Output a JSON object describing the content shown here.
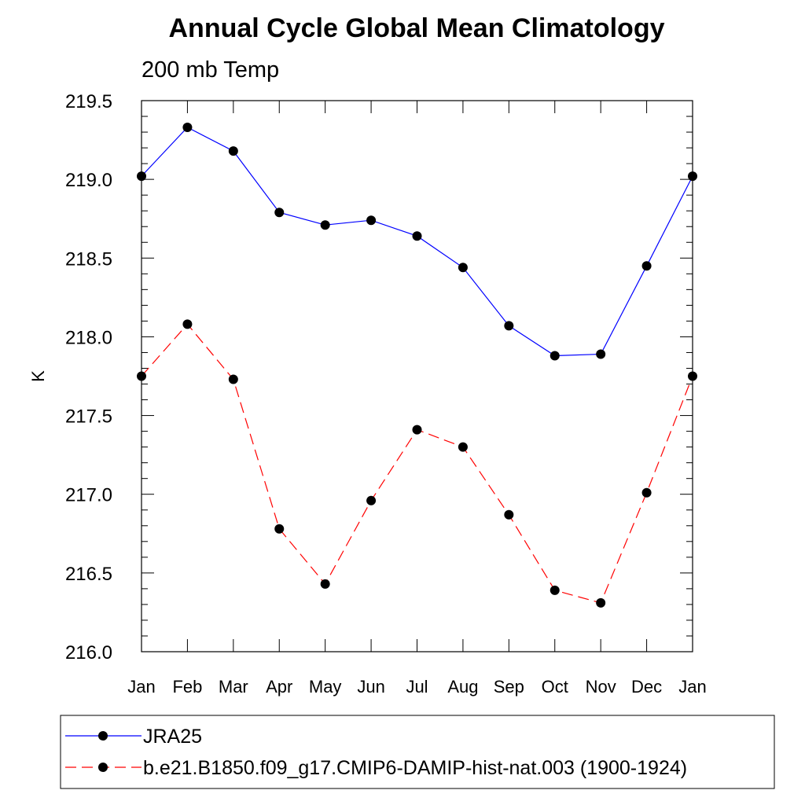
{
  "chart_data": {
    "type": "line",
    "title": "Annual Cycle Global Mean Climatology",
    "subtitle": "200 mb Temp",
    "ylabel": "K",
    "xlabel": "",
    "categories": [
      "Jan",
      "Feb",
      "Mar",
      "Apr",
      "May",
      "Jun",
      "Jul",
      "Aug",
      "Sep",
      "Oct",
      "Nov",
      "Dec",
      "Jan"
    ],
    "ylim": [
      216.0,
      219.5
    ],
    "yticks": [
      "216.0",
      "216.5",
      "217.0",
      "217.5",
      "218.0",
      "218.5",
      "219.0",
      "219.5"
    ],
    "grid": false,
    "legend_position": "bottom",
    "series": [
      {
        "name": "JRA25",
        "color": "#0000ff",
        "dash": "solid",
        "values": [
          219.02,
          219.33,
          219.18,
          218.79,
          218.71,
          218.74,
          218.64,
          218.44,
          218.07,
          217.88,
          217.89,
          218.45,
          219.02
        ]
      },
      {
        "name": "b.e21.B1850.f09_g17.CMIP6-DAMIP-hist-nat.003 (1900-1924)",
        "color": "#ff0000",
        "dash": "dashed",
        "values": [
          217.75,
          218.08,
          217.73,
          216.78,
          216.43,
          216.96,
          217.41,
          217.3,
          216.87,
          216.39,
          216.31,
          217.01,
          217.75
        ]
      }
    ]
  }
}
